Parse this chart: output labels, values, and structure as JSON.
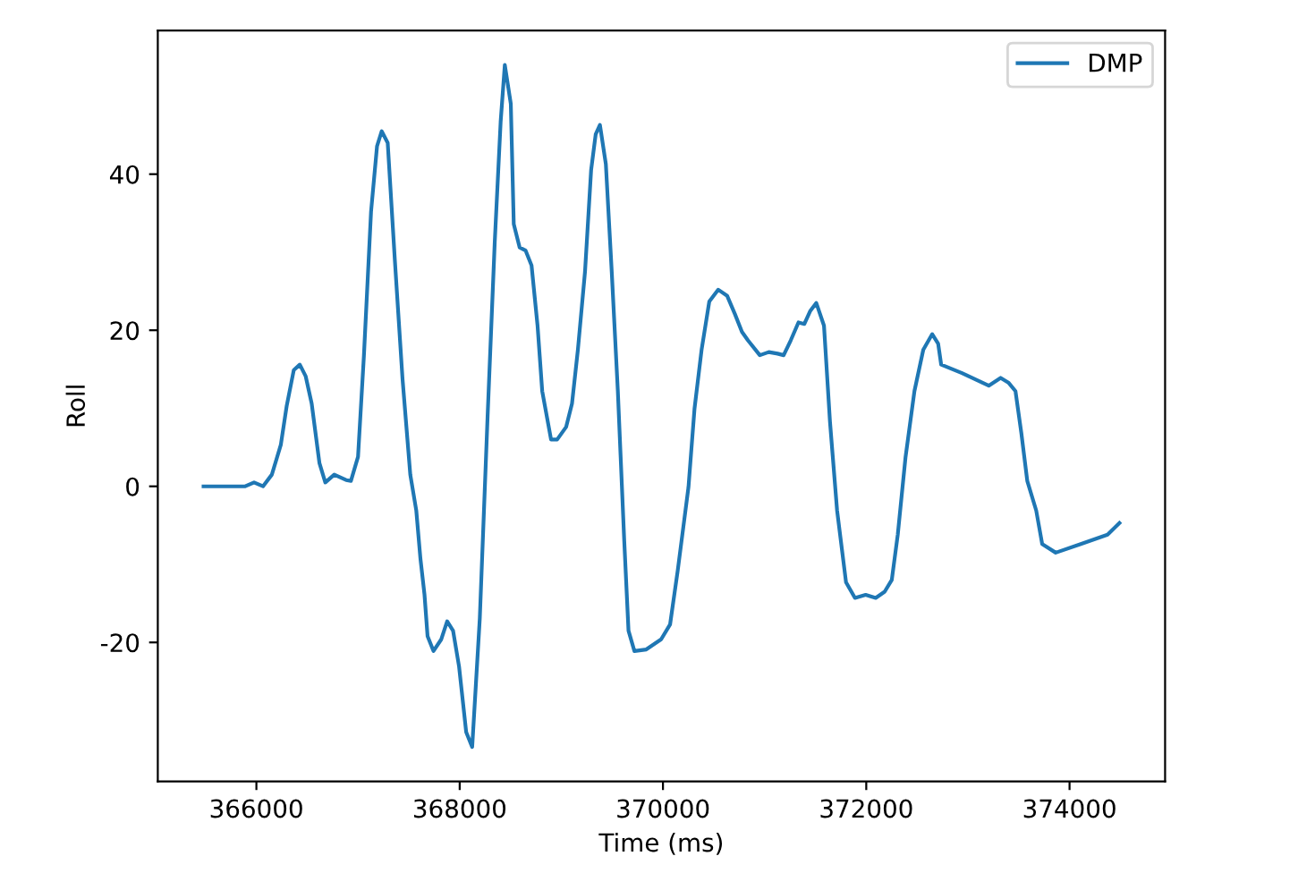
{
  "chart_data": {
    "type": "line",
    "xlabel": "Time (ms)",
    "ylabel": "Roll",
    "xlim": [
      365030,
      374940
    ],
    "ylim": [
      -37.8,
      58.4
    ],
    "xticks": [
      366000,
      368000,
      370000,
      372000,
      374000
    ],
    "yticks": [
      -20,
      0,
      20,
      40
    ],
    "grid": false,
    "legend": "top right",
    "series": [
      {
        "name": "DMP",
        "color": "#1f77b4",
        "x": [
          365480,
          365890,
          365977,
          366065,
          366152,
          366240,
          366298,
          366368,
          366427,
          366485,
          366544,
          366620,
          366678,
          366766,
          366883,
          366930,
          367000,
          367058,
          367128,
          367187,
          367233,
          367292,
          367362,
          367438,
          367514,
          367573,
          367614,
          367654,
          367684,
          367742,
          367819,
          367877,
          367935,
          367994,
          368064,
          368123,
          368198,
          368275,
          368345,
          368403,
          368444,
          368503,
          368532,
          368590,
          368649,
          368707,
          368766,
          368812,
          368899,
          368959,
          369047,
          369105,
          369163,
          369233,
          369293,
          369338,
          369380,
          369438,
          369496,
          369556,
          369619,
          369661,
          369719,
          369836,
          369982,
          370070,
          370145,
          370251,
          370310,
          370380,
          370456,
          370544,
          370632,
          370707,
          370777,
          370836,
          370953,
          371041,
          371128,
          371187,
          371257,
          371333,
          371391,
          371450,
          371508,
          371584,
          371643,
          371713,
          371801,
          371889,
          371994,
          372093,
          372181,
          372251,
          372310,
          372386,
          372474,
          372561,
          372649,
          372707,
          372737,
          372942,
          373205,
          373322,
          373398,
          373468,
          373526,
          373584,
          373672,
          373731,
          373864,
          374110,
          374374,
          374491
        ],
        "values": [
          0,
          0,
          0.5,
          0,
          1.5,
          5.3,
          10.3,
          14.9,
          15.6,
          14.1,
          10.6,
          3.0,
          0.5,
          1.5,
          0.8,
          0.7,
          3.8,
          16.8,
          35.2,
          43.6,
          45.5,
          44.0,
          29.0,
          13.7,
          1.5,
          -3.1,
          -9.3,
          -13.9,
          -19.2,
          -21.1,
          -19.6,
          -17.3,
          -18.5,
          -23.1,
          -31.5,
          -33.4,
          -16.9,
          9.1,
          31.3,
          46.7,
          54.0,
          49.0,
          33.6,
          30.6,
          30.2,
          28.3,
          20.6,
          12.2,
          6.0,
          6.0,
          7.6,
          10.6,
          17.5,
          27.5,
          40.5,
          45.1,
          46.3,
          41.3,
          27.5,
          12.2,
          -7.0,
          -18.5,
          -21.1,
          -20.9,
          -19.6,
          -17.7,
          -10.8,
          -0.1,
          9.9,
          17.5,
          23.7,
          25.2,
          24.4,
          22.1,
          19.8,
          18.7,
          16.8,
          17.2,
          17.0,
          16.8,
          18.7,
          21.0,
          20.8,
          22.5,
          23.5,
          20.6,
          8.3,
          -3.1,
          -12.3,
          -14.3,
          -13.9,
          -14.3,
          -13.5,
          -12.0,
          -6.2,
          3.7,
          12.2,
          17.5,
          19.5,
          18.3,
          15.6,
          14.5,
          12.9,
          13.9,
          13.3,
          12.2,
          6.8,
          0.7,
          -3.1,
          -7.4,
          -8.5,
          -7.4,
          -6.2,
          -4.7
        ]
      }
    ]
  }
}
